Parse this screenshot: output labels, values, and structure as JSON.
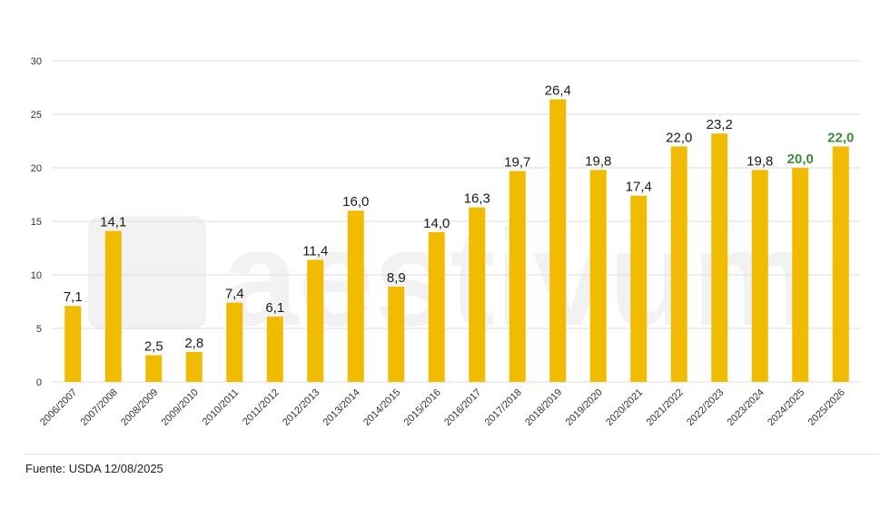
{
  "chart_data": {
    "type": "bar",
    "title": "",
    "xlabel": "",
    "ylabel": "",
    "ylim": [
      0,
      30
    ],
    "yticks": [
      0,
      5,
      10,
      15,
      20,
      25,
      30
    ],
    "categories": [
      "2006/2007",
      "2007/2008",
      "2008/2009",
      "2009/2010",
      "2010/2011",
      "2011/2012",
      "2012/2013",
      "2013/2014",
      "2014/2015",
      "2015/2016",
      "2016/2017",
      "2017/2018",
      "2018/2019",
      "2019/2020",
      "2020/2021",
      "2021/2022",
      "2022/2023",
      "2023/2024",
      "2024/2025",
      "2025/2026"
    ],
    "values": [
      7.1,
      14.1,
      2.5,
      2.8,
      7.4,
      6.1,
      11.4,
      16.0,
      8.9,
      14.0,
      16.3,
      19.7,
      26.4,
      19.8,
      17.4,
      22.0,
      23.2,
      19.8,
      20.0,
      22.0
    ],
    "labels": [
      "7,1",
      "14,1",
      "2,5",
      "2,8",
      "7,4",
      "6,1",
      "11,4",
      "16,0",
      "8,9",
      "14,0",
      "16,3",
      "19,7",
      "26,4",
      "19,8",
      "17,4",
      "22,0",
      "23,2",
      "19,8",
      "20,0",
      "22,0"
    ],
    "highlighted": [
      "2024/2025",
      "2025/2026"
    ],
    "grid": true,
    "legend": "none"
  },
  "colors": {
    "bar": "#f0bb00",
    "highlight_label": "#3d8b3d",
    "grid": "#dddddd"
  },
  "watermark": "aestivum",
  "source": "Fuente: USDA 12/08/2025"
}
